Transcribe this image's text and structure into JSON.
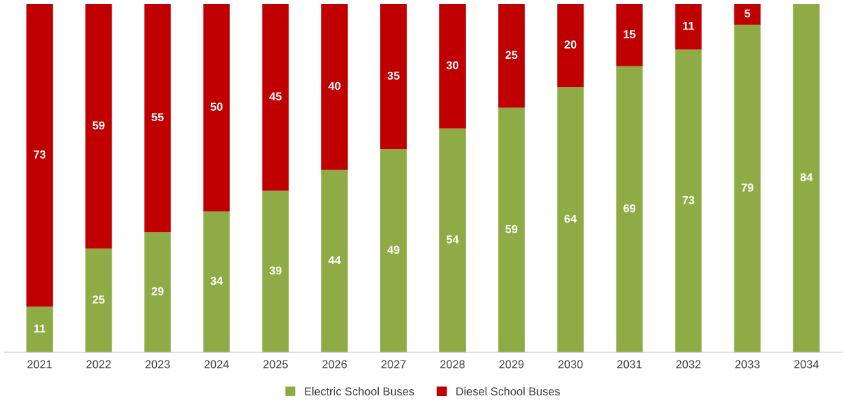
{
  "chart_data": {
    "type": "bar",
    "stacked": true,
    "data_labels": true,
    "legend": "bottom",
    "grid": false,
    "categories": [
      "2021",
      "2022",
      "2023",
      "2024",
      "2025",
      "2026",
      "2027",
      "2028",
      "2029",
      "2030",
      "2031",
      "2032",
      "2033",
      "2034"
    ],
    "series": [
      {
        "name": "Electric School Buses",
        "color": "#8fab45",
        "values": [
          11,
          25,
          29,
          34,
          39,
          44,
          49,
          54,
          59,
          64,
          69,
          73,
          79,
          84
        ]
      },
      {
        "name": "Diesel School Buses",
        "color": "#c00000",
        "values": [
          73,
          59,
          55,
          50,
          45,
          40,
          35,
          30,
          25,
          20,
          15,
          11,
          5,
          null
        ]
      }
    ]
  }
}
